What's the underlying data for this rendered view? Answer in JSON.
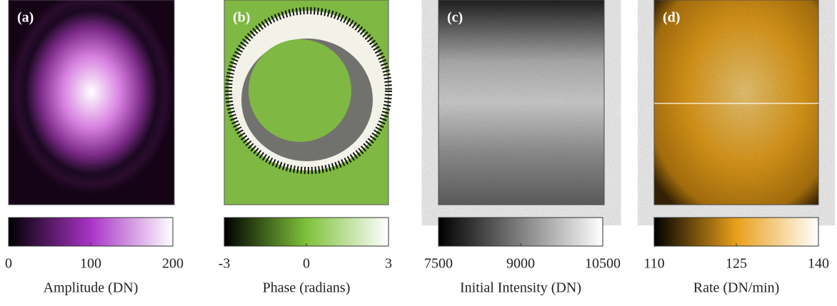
{
  "panels": [
    {
      "label": "(a)",
      "colorbar": {
        "label": "Amplitude (DN)",
        "lim": [
          0,
          200
        ],
        "ticks": [
          0,
          100,
          200
        ],
        "colors": [
          "#000000",
          "#a933c6",
          "#ffffff"
        ]
      }
    },
    {
      "label": "(b)",
      "colorbar": {
        "label": "Phase (radians)",
        "lim": [
          -3,
          3
        ],
        "ticks": [
          -3,
          0,
          3
        ],
        "colors": [
          "#000000",
          "#7fc23a",
          "#ffffff"
        ]
      }
    },
    {
      "label": "(c)",
      "colorbar": {
        "label": "Initial Intensity (DN)",
        "lim": [
          7500,
          10500
        ],
        "ticks": [
          7500,
          9000,
          10500
        ],
        "colors": [
          "#000000",
          "#808080",
          "#ffffff"
        ]
      }
    },
    {
      "label": "(d)",
      "colorbar": {
        "label": "Rate (DN/min)",
        "lim": [
          110,
          140
        ],
        "ticks": [
          110,
          125,
          140
        ],
        "colors": [
          "#000000",
          "#e9a01a",
          "#ffffff"
        ]
      }
    }
  ]
}
